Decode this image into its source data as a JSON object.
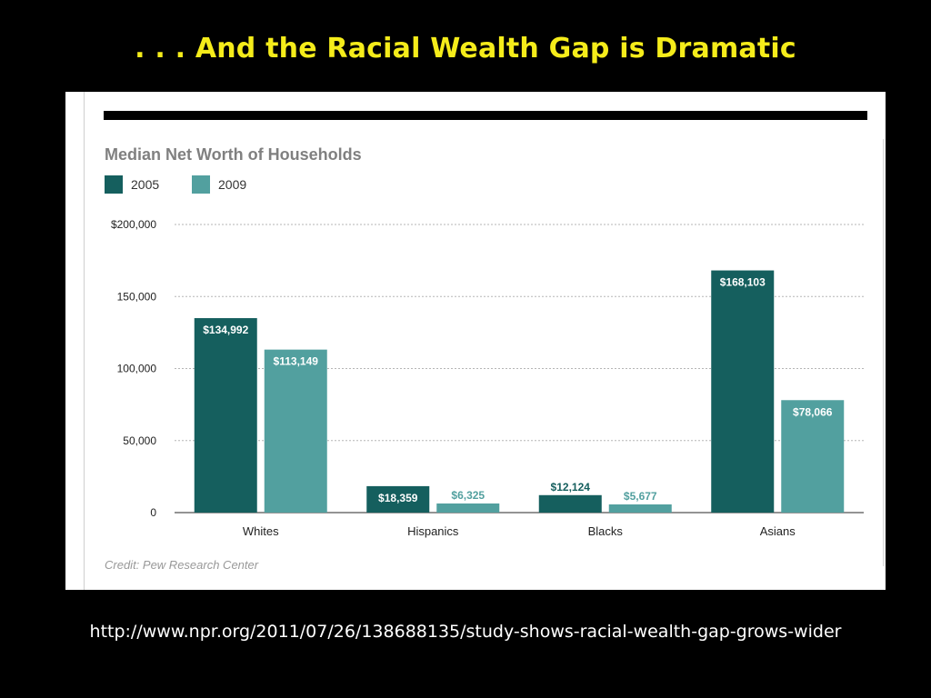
{
  "slide": {
    "title": ". . . And the Racial Wealth Gap is Dramatic",
    "source_url": "http://www.npr.org/2011/07/26/138688135/study-shows-racial-wealth-gap-grows-wider"
  },
  "colors": {
    "background": "#000000",
    "title": "#f5ec1a",
    "series_2005": "#155f5e",
    "series_2009": "#52a09f"
  },
  "chart_data": {
    "type": "bar",
    "title": "Median Net Worth of Households",
    "credit": "Credit: Pew Research Center",
    "categories": [
      "Whites",
      "Hispanics",
      "Blacks",
      "Asians"
    ],
    "series": [
      {
        "name": "2005",
        "color": "#155f5e",
        "values": [
          134992,
          18359,
          12124,
          168103
        ],
        "labels": [
          "$134,992",
          "$18,359",
          "$12,124",
          "$168,103"
        ]
      },
      {
        "name": "2009",
        "color": "#52a09f",
        "values": [
          113149,
          6325,
          5677,
          78066
        ],
        "labels": [
          "$113,149",
          "$6,325",
          "$5,677",
          "$78,066"
        ]
      }
    ],
    "ylim": [
      0,
      200000
    ],
    "yticks": [
      0,
      50000,
      100000,
      150000,
      200000
    ],
    "ytick_labels": [
      "0",
      "50,000",
      "100,000",
      "150,000",
      "$200,000"
    ],
    "grid": true,
    "legend": "top-left"
  }
}
